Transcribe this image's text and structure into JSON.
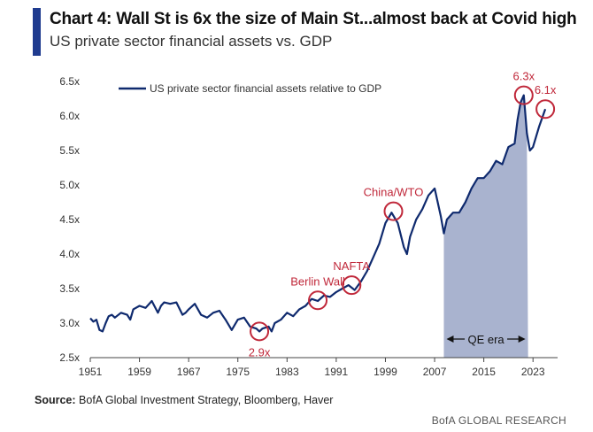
{
  "header": {
    "title": "Chart 4: Wall St is 6x the size of Main St...almost back at Covid high",
    "subtitle": "US private sector financial assets vs. GDP"
  },
  "footer": {
    "source_label": "Source:",
    "source_text": "BofA Global Investment Strategy, Bloomberg, Haver",
    "brand": "BofA GLOBAL RESEARCH"
  },
  "colors": {
    "accent": "#1f3b8f",
    "line": "#0f2a6e",
    "shade": "#a9b3cf",
    "annotation": "#c0283a"
  },
  "chart_data": {
    "type": "line",
    "series": [
      {
        "name": "US private sector financial assets relative to GDP",
        "x": [
          1951,
          1951.5,
          1952,
          1952.5,
          1953,
          1953.5,
          1954,
          1954.5,
          1955,
          1956,
          1957,
          1957.5,
          1958,
          1959,
          1960,
          1961,
          1962,
          1962.5,
          1963,
          1964,
          1965,
          1966,
          1966.5,
          1967,
          1968,
          1969,
          1970,
          1971,
          1972,
          1973,
          1974,
          1975,
          1976,
          1977,
          1978,
          1978.5,
          1979,
          1980,
          1980.5,
          1981,
          1982,
          1983,
          1984,
          1985,
          1986,
          1987,
          1988,
          1989,
          1990,
          1991,
          1992,
          1993,
          1994,
          1995,
          1996,
          1997,
          1998,
          1999,
          2000,
          2001,
          2002,
          2002.5,
          2003,
          2004,
          2005,
          2006,
          2007,
          2008,
          2008.5,
          2009,
          2010,
          2011,
          2012,
          2013,
          2014,
          2015,
          2016,
          2017,
          2018,
          2019,
          2020,
          2020.5,
          2021,
          2021.5,
          2022,
          2022.5,
          2023,
          2024,
          2025
        ],
        "values": [
          3.07,
          3.02,
          3.05,
          2.9,
          2.88,
          3.0,
          3.1,
          3.12,
          3.08,
          3.15,
          3.12,
          3.05,
          3.2,
          3.25,
          3.22,
          3.32,
          3.15,
          3.25,
          3.3,
          3.28,
          3.3,
          3.12,
          3.15,
          3.2,
          3.28,
          3.12,
          3.08,
          3.15,
          3.18,
          3.05,
          2.9,
          3.05,
          3.08,
          2.95,
          2.92,
          2.88,
          2.92,
          2.95,
          2.88,
          3.0,
          3.05,
          3.15,
          3.1,
          3.2,
          3.25,
          3.35,
          3.32,
          3.4,
          3.38,
          3.45,
          3.5,
          3.55,
          3.48,
          3.6,
          3.75,
          3.95,
          4.15,
          4.45,
          4.6,
          4.45,
          4.1,
          4.0,
          4.25,
          4.5,
          4.65,
          4.85,
          4.95,
          4.55,
          4.3,
          4.5,
          4.6,
          4.6,
          4.75,
          4.95,
          5.1,
          5.1,
          5.2,
          5.35,
          5.3,
          5.55,
          5.6,
          5.95,
          6.2,
          6.3,
          5.75,
          5.5,
          5.55,
          5.85,
          6.1
        ]
      }
    ],
    "y_ticks": [
      "6.5x",
      "6.0x",
      "5.5x",
      "5.0x",
      "4.5x",
      "4.0x",
      "3.5x",
      "3.0x",
      "2.5x"
    ],
    "x_ticks": [
      "1951",
      "1959",
      "1967",
      "1975",
      "1983",
      "1991",
      "1999",
      "2007",
      "2015",
      "2023"
    ],
    "xlim": [
      1951,
      2027
    ],
    "ylim": [
      2.5,
      6.5
    ],
    "grid": false,
    "legend_position": "top-left",
    "shaded_region": {
      "label": "QE era",
      "x_start": 2008.5,
      "x_end": 2022.2
    },
    "annotations": [
      {
        "label": "2.9x",
        "x": 1978.5,
        "y": 2.88,
        "label_position": "below"
      },
      {
        "label": "Berlin Wall",
        "x": 1988,
        "y": 3.33,
        "label_position": "above"
      },
      {
        "label": "NAFTA",
        "x": 1993.5,
        "y": 3.55,
        "label_position": "above"
      },
      {
        "label": "China/WTO",
        "x": 2000.3,
        "y": 4.62,
        "label_position": "above"
      },
      {
        "label": "6.3x",
        "x": 2021.5,
        "y": 6.3,
        "label_position": "above"
      },
      {
        "label": "6.1x",
        "x": 2025,
        "y": 6.1,
        "label_position": "above"
      }
    ]
  }
}
